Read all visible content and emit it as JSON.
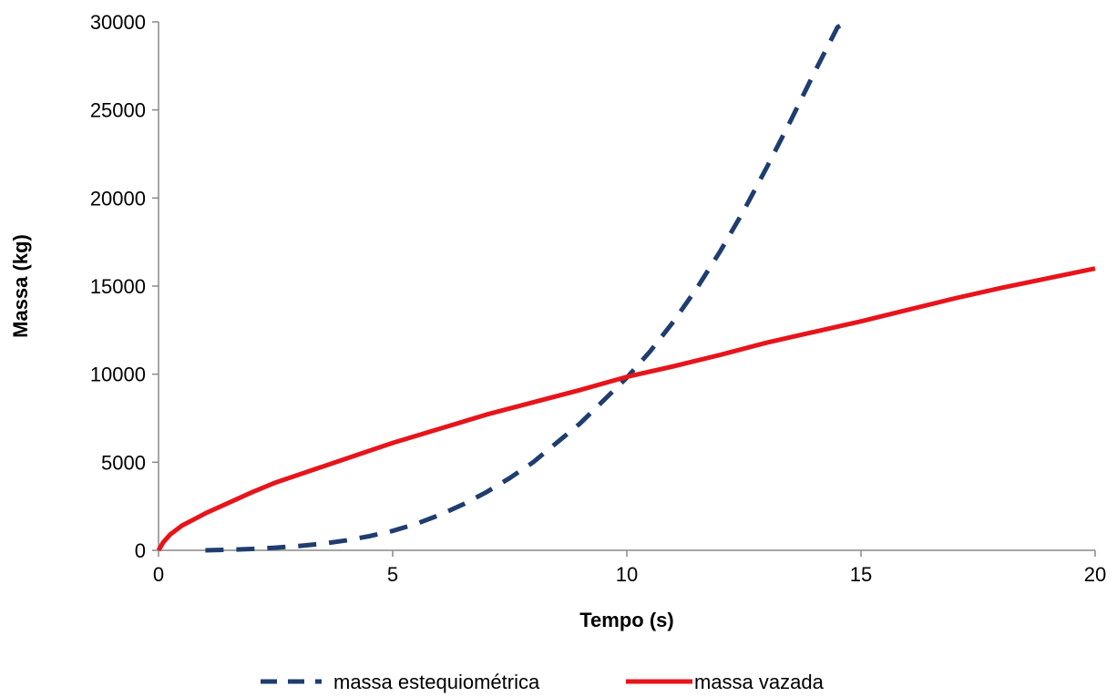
{
  "chart_data": {
    "type": "line",
    "title": "",
    "xlabel": "Tempo (s)",
    "ylabel": "Massa (kg)",
    "xlim": [
      0,
      20
    ],
    "ylim": [
      0,
      30000
    ],
    "x_ticks": [
      "0",
      "5",
      "10",
      "15",
      "20"
    ],
    "y_ticks": [
      "0",
      "5000",
      "10000",
      "15000",
      "20000",
      "25000",
      "30000"
    ],
    "grid": false,
    "legend_position": "bottom",
    "series": [
      {
        "name": "massa estequiométrica",
        "color": "#1f3d6e",
        "style": "dashed",
        "x": [
          1,
          1.5,
          2,
          2.5,
          3,
          3.5,
          4,
          4.5,
          5,
          5.5,
          6,
          6.5,
          7,
          7.5,
          8,
          8.5,
          9,
          9.5,
          10,
          10.5,
          11,
          11.5,
          12,
          12.5,
          13,
          13.5,
          14,
          14.5,
          14.7
        ],
        "y": [
          0,
          30,
          80,
          150,
          250,
          380,
          560,
          800,
          1100,
          1500,
          2000,
          2600,
          3300,
          4100,
          5000,
          6100,
          7200,
          8500,
          9800,
          11300,
          13000,
          14900,
          17000,
          19300,
          21800,
          24400,
          27100,
          29700,
          30000
        ]
      },
      {
        "name": "massa vazada",
        "color": "#e8141b",
        "style": "solid",
        "x": [
          0,
          0.1,
          0.25,
          0.5,
          0.75,
          1,
          1.5,
          2,
          2.5,
          3,
          4,
          5,
          6,
          7,
          8,
          9,
          10,
          11,
          12,
          13,
          14,
          15,
          16,
          17,
          18,
          19,
          20
        ],
        "y": [
          0,
          450,
          900,
          1400,
          1750,
          2100,
          2700,
          3300,
          3850,
          4300,
          5200,
          6100,
          6900,
          7700,
          8400,
          9100,
          9850,
          10450,
          11100,
          11800,
          12400,
          13000,
          13650,
          14300,
          14900,
          15450,
          16000
        ]
      }
    ]
  }
}
